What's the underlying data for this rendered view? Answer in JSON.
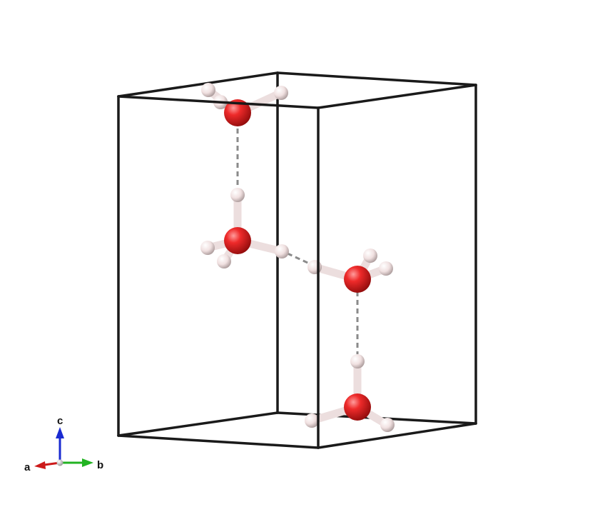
{
  "viewer": {
    "background": "#ffffff"
  },
  "unit_cell": {
    "edge_color": "#1a1a1a"
  },
  "atoms": {
    "oxygen": {
      "element": "O",
      "color": "#e02020"
    },
    "hydrogen": {
      "element": "H",
      "color": "#f2dede"
    }
  },
  "hydrogen_bond": {
    "style": "dashed",
    "color": "#8a8a8a"
  },
  "axes": {
    "a": {
      "label": "a",
      "color": "#cc1a1a"
    },
    "b": {
      "label": "b",
      "color": "#22b322"
    },
    "c": {
      "label": "c",
      "color": "#1a2bd1"
    }
  }
}
